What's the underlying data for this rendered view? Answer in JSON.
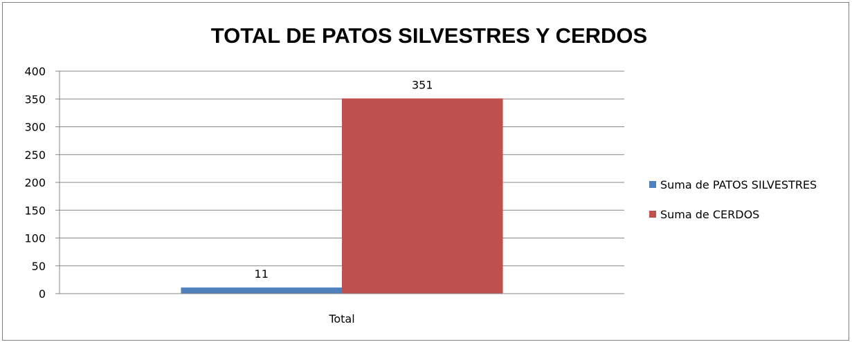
{
  "chart_data": {
    "type": "bar",
    "title": "TOTAL DE PATOS SILVESTRES Y CERDOS",
    "categories": [
      "Total"
    ],
    "series": [
      {
        "name": "Suma de PATOS SILVESTRES",
        "values": [
          11
        ],
        "color": "#4f81bd"
      },
      {
        "name": "Suma de CERDOS",
        "values": [
          351
        ],
        "color": "#c0504d"
      }
    ],
    "ylim": [
      0,
      400
    ],
    "yticks": [
      0,
      50,
      100,
      150,
      200,
      250,
      300,
      350,
      400
    ],
    "grid": true,
    "legend_position": "right",
    "data_labels": true
  }
}
